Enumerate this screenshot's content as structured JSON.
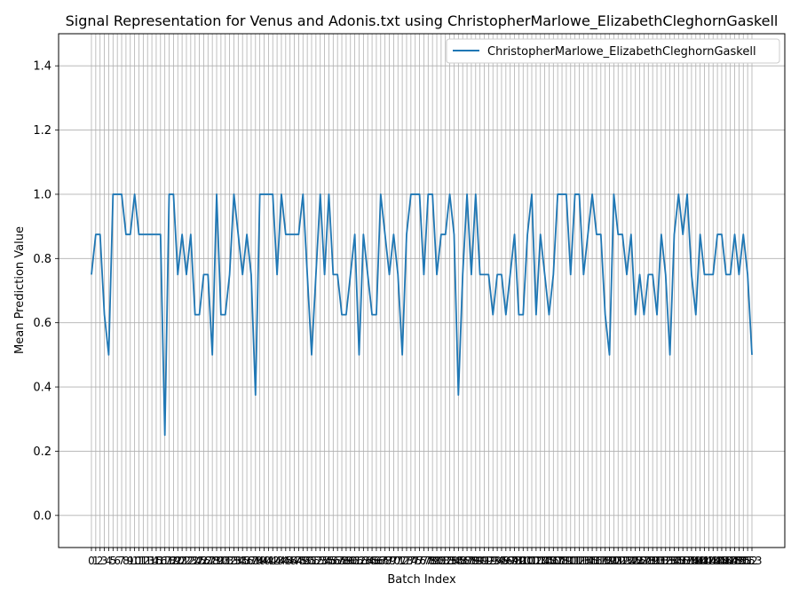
{
  "chart_data": {
    "type": "line",
    "title": "Signal Representation for Venus and Adonis.txt using ChristopherMarlowe_ElizabethCleghornGaskell",
    "xlabel": "Batch Index",
    "ylabel": "Mean Prediction Value",
    "xlim": [
      0,
      153
    ],
    "ylim": [
      -0.1,
      1.5
    ],
    "yticks": [
      "0.0",
      "0.2",
      "0.4",
      "0.6",
      "0.8",
      "1.0",
      "1.2",
      "1.4"
    ],
    "grid": true,
    "legend_position": "top-right",
    "x": [
      0,
      1,
      2,
      3,
      4,
      5,
      6,
      7,
      8,
      9,
      10,
      11,
      12,
      13,
      14,
      15,
      16,
      17,
      18,
      19,
      20,
      21,
      22,
      23,
      24,
      25,
      26,
      27,
      28,
      29,
      30,
      31,
      32,
      33,
      34,
      35,
      36,
      37,
      38,
      39,
      40,
      41,
      42,
      43,
      44,
      45,
      46,
      47,
      48,
      49,
      50,
      51,
      52,
      53,
      54,
      55,
      56,
      57,
      58,
      59,
      60,
      61,
      62,
      63,
      64,
      65,
      66,
      67,
      68,
      69,
      70,
      71,
      72,
      73,
      74,
      75,
      76,
      77,
      78,
      79,
      80,
      81,
      82,
      83,
      84,
      85,
      86,
      87,
      88,
      89,
      90,
      91,
      92,
      93,
      94,
      95,
      96,
      97,
      98,
      99,
      100,
      101,
      102,
      103,
      104,
      105,
      106,
      107,
      108,
      109,
      110,
      111,
      112,
      113,
      114,
      115,
      116,
      117,
      118,
      119,
      120,
      121,
      122,
      123,
      124,
      125,
      126,
      127,
      128,
      129,
      130,
      131,
      132,
      133,
      134,
      135,
      136,
      137,
      138,
      139,
      140,
      141,
      142,
      143,
      144,
      145,
      146,
      147,
      148,
      149,
      150,
      151,
      152,
      153
    ],
    "series": [
      {
        "name": "ChristopherMarlowe_ElizabethCleghornGaskell",
        "color": "#1f77b4",
        "values": [
          0.75,
          0.875,
          0.875,
          0.625,
          0.5,
          1.0,
          1.0,
          1.0,
          0.875,
          0.875,
          1.0,
          0.875,
          0.875,
          0.875,
          0.875,
          0.875,
          0.875,
          0.25,
          1.0,
          1.0,
          0.75,
          0.875,
          0.75,
          0.875,
          0.625,
          0.625,
          0.75,
          0.75,
          0.5,
          1.0,
          0.625,
          0.625,
          0.75,
          1.0,
          0.875,
          0.75,
          0.875,
          0.75,
          0.375,
          1.0,
          1.0,
          1.0,
          1.0,
          0.75,
          1.0,
          0.875,
          0.875,
          0.875,
          0.875,
          1.0,
          0.75,
          0.5,
          0.75,
          1.0,
          0.75,
          1.0,
          0.75,
          0.75,
          0.625,
          0.625,
          0.75,
          0.875,
          0.5,
          0.875,
          0.75,
          0.625,
          0.625,
          1.0,
          0.875,
          0.75,
          0.875,
          0.75,
          0.5,
          0.875,
          1.0,
          1.0,
          1.0,
          0.75,
          1.0,
          1.0,
          0.75,
          0.875,
          0.875,
          1.0,
          0.875,
          0.375,
          0.75,
          1.0,
          0.75,
          1.0,
          0.75,
          0.75,
          0.75,
          0.625,
          0.75,
          0.75,
          0.625,
          0.75,
          0.875,
          0.625,
          0.625,
          0.875,
          1.0,
          0.625,
          0.875,
          0.75,
          0.625,
          0.75,
          1.0,
          1.0,
          1.0,
          0.75,
          1.0,
          1.0,
          0.75,
          0.875,
          1.0,
          0.875,
          0.875,
          0.625,
          0.5,
          1.0,
          0.875,
          0.875,
          0.75,
          0.875,
          0.625,
          0.75,
          0.625,
          0.75,
          0.75,
          0.625,
          0.875,
          0.75,
          0.5,
          0.875,
          1.0,
          0.875,
          1.0,
          0.75,
          0.625,
          0.875,
          0.75,
          0.75,
          0.75,
          0.875,
          0.875,
          0.75,
          0.75,
          0.875,
          0.75,
          0.875,
          0.75,
          0.5
        ]
      }
    ]
  }
}
